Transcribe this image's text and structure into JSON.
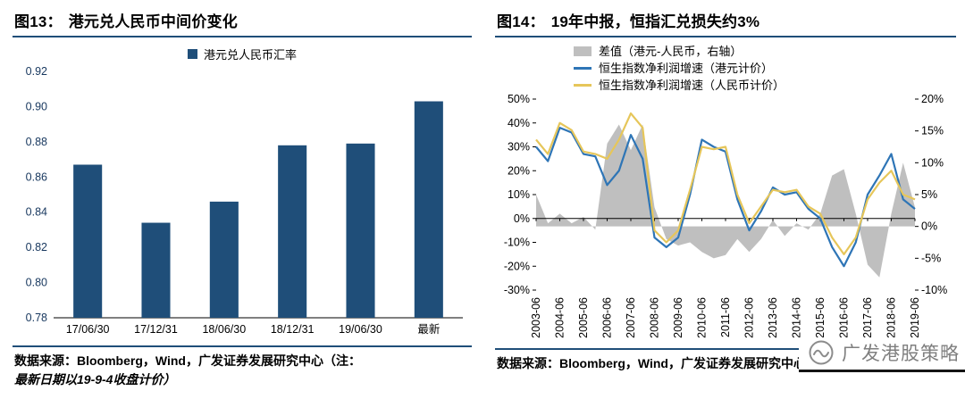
{
  "colors": {
    "rule_navy": "#1f4e79",
    "bar_blue": "#1f4e79",
    "line_blue": "#2e75b6",
    "line_yellow": "#e6c65a",
    "area_gray": "#bfbfbf",
    "watermark_gray": "#7f7f7f"
  },
  "left_panel": {
    "fig_label": "图13：",
    "title": "港元兑人民币中间价变化",
    "legend_label": "港元兑人民币汇率",
    "source_line1": "数据来源：Bloomberg，Wind，广发证券发展研究中心（注：",
    "source_line2": "最新日期以19-9-4收盘计价）"
  },
  "right_panel": {
    "fig_label": "图14：",
    "title": "19年中报，恒指汇兑损失约3%",
    "source": "数据来源：Bloomberg，Wind，广发证券发展研究中心"
  },
  "watermark": {
    "text": "广发港股策略"
  },
  "chart_data": [
    {
      "type": "bar",
      "title": "港元兑人民币中间价变化",
      "series_name": "港元兑人民币汇率",
      "categories": [
        "17/06/30",
        "17/12/31",
        "18/06/30",
        "18/12/31",
        "19/06/30",
        "最新"
      ],
      "values": [
        0.867,
        0.834,
        0.846,
        0.878,
        0.879,
        0.903
      ],
      "ylim": [
        0.78,
        0.92
      ],
      "ytick_step": 0.02,
      "bar_color": "#1f4e79",
      "legend_position": "top",
      "grid": false
    },
    {
      "type": "line+area",
      "title": "19年中报，恒指汇兑损失约3%",
      "x": [
        "2003-06",
        "2003-12",
        "2004-06",
        "2004-12",
        "2005-06",
        "2005-12",
        "2006-06",
        "2006-12",
        "2007-06",
        "2007-12",
        "2008-06",
        "2008-12",
        "2009-06",
        "2009-12",
        "2010-06",
        "2010-12",
        "2011-06",
        "2011-12",
        "2012-06",
        "2012-12",
        "2013-06",
        "2013-12",
        "2014-06",
        "2014-12",
        "2015-06",
        "2015-12",
        "2016-06",
        "2016-12",
        "2017-06",
        "2017-12",
        "2018-06",
        "2018-12",
        "2019-06"
      ],
      "x_axis_ticks": [
        "2003-06",
        "2004-06",
        "2005-06",
        "2006-06",
        "2007-06",
        "2008-06",
        "2009-06",
        "2010-06",
        "2011-06",
        "2012-06",
        "2013-06",
        "2014-06",
        "2015-06",
        "2016-06",
        "2017-06",
        "2018-06",
        "2019-06"
      ],
      "left_ylim": [
        -30,
        50
      ],
      "left_tick_step": 10,
      "right_ylim": [
        -10,
        20
      ],
      "right_tick_step": 5,
      "grid": false,
      "legend_position": "top",
      "series": [
        {
          "name": "差值（港元-人民币，右轴）",
          "type": "area",
          "axis": "right",
          "color": "#bfbfbf",
          "values": [
            5,
            0.5,
            2,
            0.5,
            1.5,
            -0.5,
            13,
            16,
            12,
            16,
            3,
            -2,
            -3,
            -2.5,
            -4,
            -5,
            -4.5,
            -2,
            -4,
            -2,
            1,
            -1.5,
            0.5,
            -0.5,
            2,
            8,
            9,
            2,
            -6,
            -8,
            2,
            10,
            3
          ]
        },
        {
          "name": "恒生指数净利润增速（港元计价）",
          "type": "line",
          "axis": "left",
          "color": "#2e75b6",
          "values": [
            30,
            24,
            38,
            36,
            27,
            26,
            14,
            20,
            35,
            25,
            -8,
            -12,
            -8,
            10,
            33,
            30,
            28,
            8,
            -5,
            3,
            13,
            10,
            11,
            4,
            0,
            -12,
            -20,
            -10,
            10,
            18,
            27,
            8,
            4
          ]
        },
        {
          "name": "恒生指数净利润增速（人民币计价）",
          "type": "line",
          "axis": "left",
          "color": "#e6c65a",
          "values": [
            33,
            27,
            40,
            37,
            28,
            27,
            25,
            33,
            44,
            38,
            -5,
            -10,
            -5,
            12,
            30,
            29,
            30,
            10,
            -2,
            5,
            12,
            11,
            12,
            5,
            2,
            -8,
            -15,
            -8,
            8,
            15,
            20,
            10,
            8
          ]
        }
      ]
    }
  ]
}
